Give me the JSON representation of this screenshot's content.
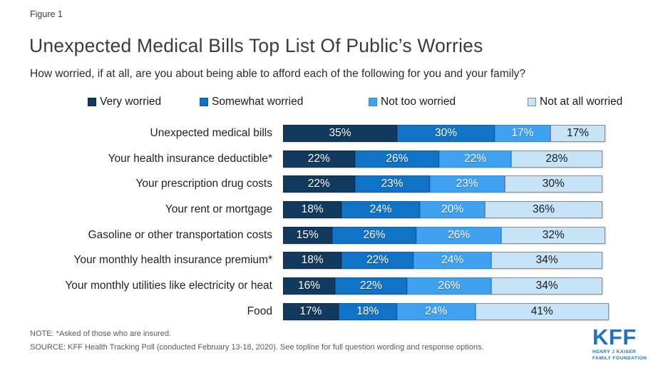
{
  "figure_label": "Figure 1",
  "title": "Unexpected Medical Bills Top List Of Public’s Worries",
  "subtitle": "How worried, if at all, are you about being able to afford each of the following for you and your family?",
  "chart_data": {
    "type": "bar",
    "orientation": "horizontal-stacked",
    "value_suffix": "%",
    "xlim": [
      0,
      100
    ],
    "grid": false,
    "legend_position": "top",
    "categories": [
      "Unexpected medical bills",
      "Your health insurance deductible*",
      "Your prescription drug costs",
      "Your rent or mortgage",
      "Gasoline or other transportation costs",
      "Your monthly health insurance premium*",
      "Your monthly utilities like electricity or heat",
      "Food"
    ],
    "series": [
      {
        "name": "Very worried",
        "color": "#12395E",
        "border": "#0D2B47",
        "text_color": "#FFFFFF",
        "values": [
          35,
          22,
          22,
          18,
          15,
          18,
          16,
          17
        ]
      },
      {
        "name": "Somewhat worried",
        "color": "#1173C5",
        "border": "#0B5AA5",
        "text_color": "#FFFFFF",
        "values": [
          30,
          26,
          23,
          24,
          26,
          22,
          22,
          18
        ]
      },
      {
        "name": "Not too worried",
        "color": "#41A1F1",
        "border": "#2B8CD9",
        "text_color": "#FFFFFF",
        "values": [
          17,
          22,
          23,
          20,
          26,
          24,
          26,
          24
        ]
      },
      {
        "name": "Not at all worried",
        "color": "#C7E3F8",
        "border": "#8A8A8A",
        "text_color": "#1A1A1A",
        "values": [
          17,
          28,
          30,
          36,
          32,
          34,
          34,
          41
        ]
      }
    ]
  },
  "note": "NOTE: *Asked of those who are insured.",
  "source": "SOURCE: KFF Health Tracking Poll (conducted February 13-18, 2020). See topline for full question wording and response options.",
  "logo": {
    "acronym": "KFF",
    "tagline_line1": "HENRY J KAISER",
    "tagline_line2": "FAMILY FOUNDATION",
    "color": "#2173BC"
  }
}
